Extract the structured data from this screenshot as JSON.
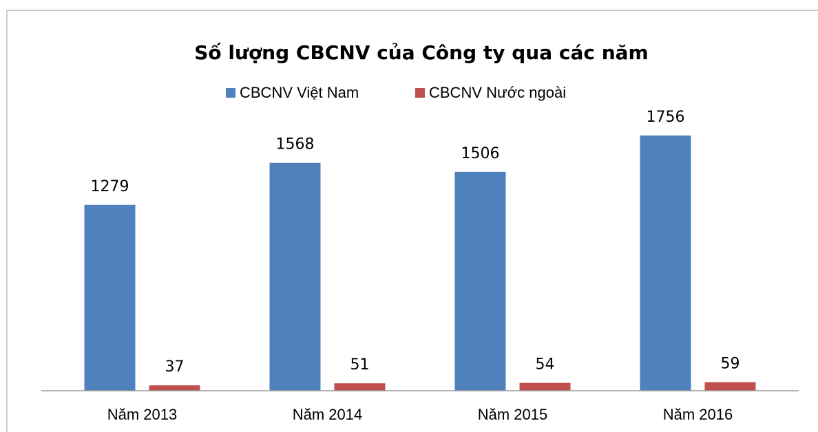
{
  "chart_data": {
    "type": "bar",
    "title": "Số lượng CBCNV của Công ty qua các năm",
    "categories": [
      "Năm 2013",
      "Năm 2014",
      "Năm 2015",
      "Năm 2016"
    ],
    "series": [
      {
        "name": "CBCNV Việt Nam",
        "color": "#4f81bd",
        "values": [
          1279,
          1568,
          1506,
          1756
        ]
      },
      {
        "name": "CBCNV Nước ngoài",
        "color": "#c0504d",
        "values": [
          37,
          51,
          54,
          59
        ]
      }
    ],
    "legend": "top"
  }
}
